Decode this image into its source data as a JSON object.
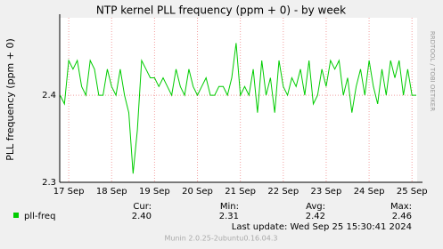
{
  "chart_data": {
    "type": "line",
    "title": "NTP kernel PLL frequency (ppm + 0) - by week",
    "y_label": "PLL frequency (ppm + 0)",
    "side_label": "RRDTOOL / TOBI OETIKER",
    "x": [
      16.8,
      16.9,
      17.0,
      17.1,
      17.2,
      17.3,
      17.4,
      17.5,
      17.6,
      17.7,
      17.8,
      17.9,
      18.0,
      18.1,
      18.2,
      18.3,
      18.4,
      18.5,
      18.6,
      18.7,
      18.8,
      18.9,
      19.0,
      19.1,
      19.2,
      19.3,
      19.4,
      19.5,
      19.6,
      19.7,
      19.8,
      19.9,
      20.0,
      20.1,
      20.2,
      20.3,
      20.4,
      20.5,
      20.6,
      20.7,
      20.8,
      20.9,
      21.0,
      21.1,
      21.2,
      21.3,
      21.4,
      21.5,
      21.6,
      21.7,
      21.8,
      21.9,
      22.0,
      22.1,
      22.2,
      22.3,
      22.4,
      22.5,
      22.6,
      22.7,
      22.8,
      22.9,
      23.0,
      23.1,
      23.2,
      23.3,
      23.4,
      23.5,
      23.6,
      23.7,
      23.8,
      23.9,
      24.0,
      24.1,
      24.2,
      24.3,
      24.4,
      24.5,
      24.6,
      24.7,
      24.8,
      24.9,
      25.0,
      25.1
    ],
    "series": [
      {
        "name": "pll-freq",
        "color": "#00cc00",
        "values": [
          2.4,
          2.39,
          2.44,
          2.43,
          2.44,
          2.41,
          2.4,
          2.44,
          2.43,
          2.4,
          2.4,
          2.43,
          2.41,
          2.4,
          2.43,
          2.4,
          2.38,
          2.31,
          2.36,
          2.44,
          2.43,
          2.42,
          2.42,
          2.41,
          2.42,
          2.41,
          2.4,
          2.43,
          2.41,
          2.4,
          2.43,
          2.41,
          2.4,
          2.41,
          2.42,
          2.4,
          2.4,
          2.41,
          2.41,
          2.4,
          2.42,
          2.46,
          2.4,
          2.41,
          2.4,
          2.43,
          2.38,
          2.44,
          2.4,
          2.42,
          2.38,
          2.44,
          2.41,
          2.4,
          2.42,
          2.41,
          2.43,
          2.4,
          2.44,
          2.39,
          2.4,
          2.43,
          2.41,
          2.44,
          2.43,
          2.44,
          2.4,
          2.42,
          2.38,
          2.41,
          2.43,
          2.4,
          2.44,
          2.41,
          2.39,
          2.43,
          2.4,
          2.44,
          2.42,
          2.44,
          2.4,
          2.43,
          2.4,
          2.4
        ]
      }
    ],
    "xlim": [
      16.79,
      25.12
    ],
    "xticks": [
      {
        "value": 17,
        "label": "17 Sep"
      },
      {
        "value": 18,
        "label": "18 Sep"
      },
      {
        "value": 19,
        "label": "19 Sep"
      },
      {
        "value": 20,
        "label": "20 Sep"
      },
      {
        "value": 21,
        "label": "21 Sep"
      },
      {
        "value": 22,
        "label": "22 Sep"
      },
      {
        "value": 23,
        "label": "23 Sep"
      },
      {
        "value": 24,
        "label": "24 Sep"
      },
      {
        "value": 25,
        "label": "25 Sep"
      }
    ],
    "ylim": [
      2.3,
      2.489
    ],
    "yticks": [
      2.3,
      2.4
    ],
    "grid": true,
    "stats_headers": [
      "Cur:",
      "Min:",
      "Avg:",
      "Max:"
    ],
    "stats": [
      2.4,
      2.31,
      2.42,
      2.46
    ],
    "stats_labels": [
      "2.40",
      "2.31",
      "2.42",
      "2.46"
    ],
    "last_update": "Last update:  Wed Sep 25 15:30:41 2024",
    "footer": "Munin 2.0.25-2ubuntu0.16.04.3"
  }
}
